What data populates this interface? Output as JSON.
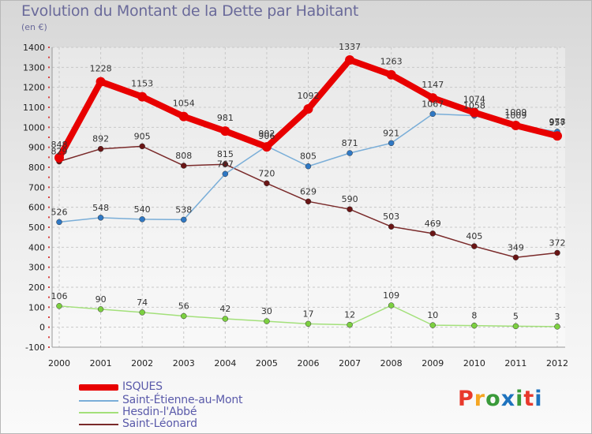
{
  "title": "Evolution du Montant de la Dette par Habitant",
  "subtitle": "(en €)",
  "logo": {
    "text": "Proxiti",
    "colors": [
      "#e8392c",
      "#f5a623",
      "#3a9a3a",
      "#1e73be",
      "#3a9a3a",
      "#e8392c",
      "#1e73be"
    ]
  },
  "chart_data": {
    "type": "line",
    "title": "Evolution du Montant de la Dette par Habitant",
    "ylabel": "(en €)",
    "xlabel": "",
    "x": [
      "2000",
      "2001",
      "2002",
      "2003",
      "2004",
      "2005",
      "2006",
      "2007",
      "2008",
      "2009",
      "2010",
      "2011",
      "2012"
    ],
    "ylim": [
      -100,
      1400
    ],
    "yticks": [
      "-100",
      "0",
      "100",
      "200",
      "300",
      "400",
      "500",
      "600",
      "700",
      "800",
      "900",
      "1000",
      "1100",
      "1200",
      "1300",
      "1400"
    ],
    "grid": true,
    "legend_position": "bottom-left",
    "series": [
      {
        "name": "ISQUES",
        "color": "#e80000",
        "marker": "#e80000",
        "values": [
          848,
          1228,
          1153,
          1054,
          981,
          902,
          1092,
          1337,
          1263,
          1147,
          1074,
          1009,
          957
        ],
        "labels": [
          "848",
          "1228",
          "1153",
          "1054",
          "981",
          "902",
          "1092",
          "1337",
          "1263",
          "1147",
          "1074",
          "1009",
          "957"
        ]
      },
      {
        "name": "Saint-Étienne-au-Mont",
        "color": "#7aaed8",
        "marker": "#2f78c4",
        "values": [
          526,
          548,
          540,
          538,
          767,
          906,
          805,
          871,
          921,
          1067,
          1058,
          1009,
          978
        ],
        "labels": [
          "526",
          "548",
          "540",
          "538",
          "767",
          "906",
          "805",
          "871",
          "921",
          "1067",
          "1058",
          "1009",
          "978"
        ]
      },
      {
        "name": "Hesdin-l'Abbé",
        "color": "#a3e07a",
        "marker": "#7cd040",
        "values": [
          106,
          90,
          74,
          56,
          42,
          30,
          17,
          12,
          109,
          10,
          8,
          5,
          3
        ],
        "labels": [
          "106",
          "90",
          "74",
          "56",
          "42",
          "30",
          "17",
          "12",
          "109",
          "10",
          "8",
          "5",
          "3"
        ]
      },
      {
        "name": "Saint-Léonard",
        "color": "#7a2a2a",
        "marker": "#6a1515",
        "values": [
          829,
          892,
          905,
          808,
          815,
          720,
          629,
          590,
          503,
          469,
          405,
          349,
          372
        ],
        "labels": [
          "829",
          "892",
          "905",
          "808",
          "815",
          "720",
          "629",
          "590",
          "503",
          "469",
          "405",
          "349",
          "372"
        ]
      }
    ]
  }
}
